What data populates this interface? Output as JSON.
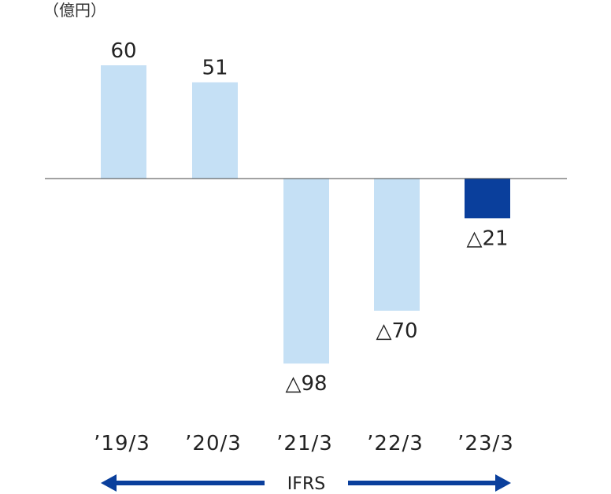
{
  "chart_data": {
    "type": "bar",
    "unit_label": "（億円）",
    "categories": [
      "’19/3",
      "’20/3",
      "’21/3",
      "’22/3",
      "’23/3"
    ],
    "values": [
      60,
      51,
      -98,
      -70,
      -21
    ],
    "data_labels": [
      "60",
      "51",
      "△98",
      "△70",
      "△21"
    ],
    "ylim": [
      -120,
      80
    ],
    "grid": false,
    "colors": {
      "bar": "#c5e0f5",
      "highlight": "#0a3f9c",
      "axis": "#444444",
      "arrow": "#0a3f9c"
    },
    "highlight_index": 4,
    "basis_label": "IFRS"
  }
}
